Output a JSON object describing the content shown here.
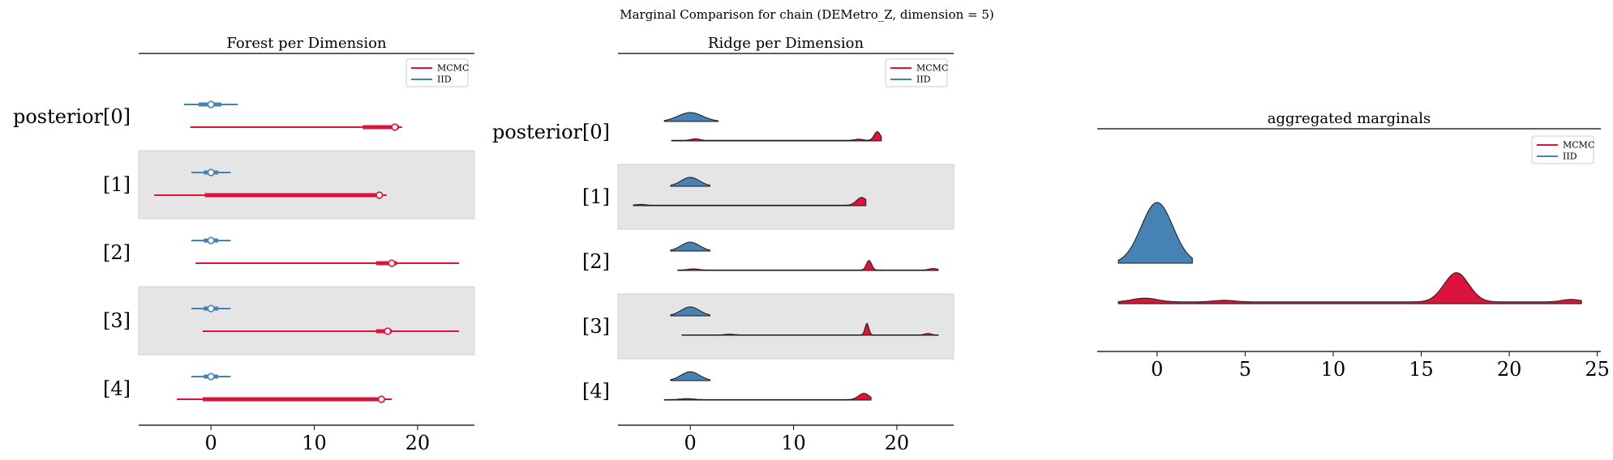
{
  "suptitle": "Marginal Comparison for chain (DEMetro_Z, dimension = 5)",
  "legend": {
    "mcmc": "MCMC",
    "iid": "IID"
  },
  "colors": {
    "mcmc": "#dc143c",
    "iid": "#4682b4",
    "band": "#e5e5e5"
  },
  "chart_data": [
    {
      "type": "forest",
      "title": "Forest per Dimension",
      "categories": [
        "posterior[0]",
        "[1]",
        "[2]",
        "[3]",
        "[4]"
      ],
      "xlim": [
        -7,
        25.5
      ],
      "xticks": [
        0,
        10,
        20
      ],
      "legend_position": "top-right",
      "series": [
        {
          "name": "IID",
          "rows": [
            {
              "hdi_low": -2.6,
              "hdi_high": 2.6,
              "iqr_low": -1.2,
              "iqr_high": 1.0,
              "point": 0.0
            },
            {
              "hdi_low": -1.9,
              "hdi_high": 1.9,
              "iqr_low": -0.7,
              "iqr_high": 0.7,
              "point": 0.0
            },
            {
              "hdi_low": -1.9,
              "hdi_high": 1.9,
              "iqr_low": -0.7,
              "iqr_high": 0.7,
              "point": 0.0
            },
            {
              "hdi_low": -1.9,
              "hdi_high": 1.9,
              "iqr_low": -0.7,
              "iqr_high": 0.7,
              "point": 0.0
            },
            {
              "hdi_low": -1.9,
              "hdi_high": 1.9,
              "iqr_low": -0.7,
              "iqr_high": 0.7,
              "point": 0.0
            }
          ]
        },
        {
          "name": "MCMC",
          "rows": [
            {
              "hdi_low": -2.0,
              "hdi_high": 18.5,
              "iqr_low": 14.7,
              "iqr_high": 18.2,
              "point": 17.8
            },
            {
              "hdi_low": -5.5,
              "hdi_high": 17.0,
              "iqr_low": -0.6,
              "iqr_high": 16.5,
              "point": 16.3
            },
            {
              "hdi_low": -1.5,
              "hdi_high": 24.0,
              "iqr_low": 16.0,
              "iqr_high": 18.0,
              "point": 17.5
            },
            {
              "hdi_low": -0.8,
              "hdi_high": 24.0,
              "iqr_low": 16.0,
              "iqr_high": 17.5,
              "point": 17.1
            },
            {
              "hdi_low": -3.3,
              "hdi_high": 17.5,
              "iqr_low": -0.8,
              "iqr_high": 16.6,
              "point": 16.5
            }
          ]
        }
      ]
    },
    {
      "type": "ridge",
      "title": "Ridge per Dimension",
      "categories": [
        "posterior[0]",
        "[1]",
        "[2]",
        "[3]",
        "[4]"
      ],
      "xlim": [
        -7,
        25.5
      ],
      "xticks": [
        0,
        10,
        20
      ],
      "legend_position": "top-right",
      "series": [
        {
          "name": "IID",
          "rows": [
            {
              "range": [
                -2.5,
                2.7
              ],
              "bumps": [
                [
                  0.0,
                  1.2,
                  1.0
                ]
              ]
            },
            {
              "range": [
                -1.9,
                1.9
              ],
              "bumps": [
                [
                  0.0,
                  0.9,
                  1.0
                ]
              ]
            },
            {
              "range": [
                -1.9,
                1.9
              ],
              "bumps": [
                [
                  0.0,
                  0.9,
                  1.0
                ]
              ]
            },
            {
              "range": [
                -1.9,
                1.9
              ],
              "bumps": [
                [
                  0.0,
                  0.9,
                  1.0
                ]
              ]
            },
            {
              "range": [
                -1.9,
                1.9
              ],
              "bumps": [
                [
                  0.0,
                  0.9,
                  1.0
                ]
              ]
            }
          ]
        },
        {
          "name": "MCMC",
          "rows": [
            {
              "range": [
                -1.8,
                18.5
              ],
              "base": 0.06,
              "bumps": [
                [
                  0.5,
                  0.4,
                  0.16
                ],
                [
                  16.3,
                  0.4,
                  0.12
                ],
                [
                  18.1,
                  0.3,
                  0.9
                ]
              ]
            },
            {
              "range": [
                -5.5,
                17.0
              ],
              "base": 0.05,
              "bumps": [
                [
                  -4.8,
                  0.5,
                  0.08
                ],
                [
                  16.6,
                  0.5,
                  0.8
                ]
              ]
            },
            {
              "range": [
                -1.2,
                24.0
              ],
              "base": 0.05,
              "bumps": [
                [
                  0.3,
                  0.5,
                  0.12
                ],
                [
                  17.3,
                  0.25,
                  1.0
                ],
                [
                  23.5,
                  0.4,
                  0.15
                ]
              ]
            },
            {
              "range": [
                -0.8,
                24.0
              ],
              "base": 0.04,
              "bumps": [
                [
                  3.8,
                  0.4,
                  0.08
                ],
                [
                  17.1,
                  0.18,
                  1.2
                ],
                [
                  23.0,
                  0.3,
                  0.15
                ]
              ]
            },
            {
              "range": [
                -2.5,
                17.5
              ],
              "base": 0.05,
              "bumps": [
                [
                  -0.3,
                  0.6,
                  0.1
                ],
                [
                  16.8,
                  0.5,
                  0.65
                ]
              ]
            }
          ]
        }
      ]
    },
    {
      "type": "area",
      "title": "aggregated marginals",
      "xlim": [
        -3.4,
        25.2
      ],
      "xticks": [
        0,
        5,
        10,
        15,
        20,
        25
      ],
      "legend_position": "top-right",
      "series": [
        {
          "name": "IID",
          "range": [
            -2.2,
            2.0
          ],
          "bumps": [
            [
              0.0,
              0.9,
              1.0
            ]
          ]
        },
        {
          "name": "MCMC",
          "range": [
            -2.2,
            24.1
          ],
          "base": 0.06,
          "bumps": [
            [
              -0.7,
              0.7,
              0.12
            ],
            [
              3.8,
              0.6,
              0.05
            ],
            [
              17.0,
              0.7,
              0.95
            ],
            [
              23.5,
              0.5,
              0.08
            ]
          ]
        }
      ]
    }
  ]
}
